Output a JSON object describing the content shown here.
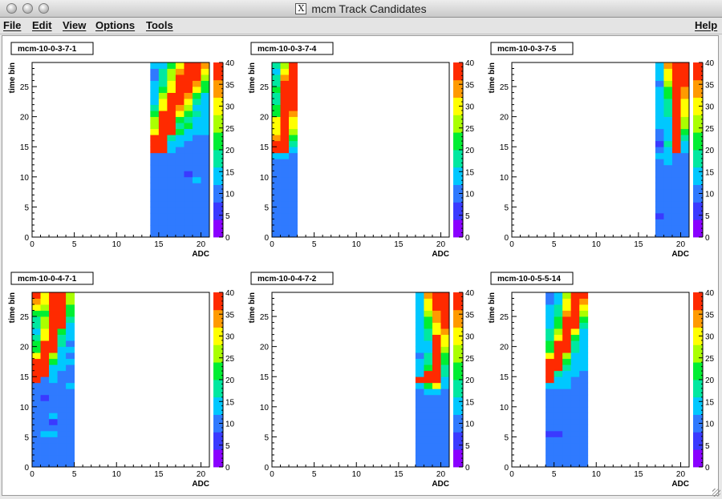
{
  "window": {
    "title": "mcm Track Candidates",
    "title_icon": "x11-icon"
  },
  "menubar": {
    "file": "File",
    "edit": "Edit",
    "view": "View",
    "options": "Options",
    "tools": "Tools",
    "help": "Help"
  },
  "colors": {
    "palette": [
      "#8a00ff",
      "#3a3aff",
      "#2f7aff",
      "#00c8ff",
      "#00e8a0",
      "#00ee33",
      "#aaff00",
      "#ffff00",
      "#ff9a00",
      "#ff2a00"
    ],
    "text": "#000000",
    "frame_bg": "#ffffff"
  },
  "chart_data": [
    {
      "type": "heatmap",
      "title": "mcm-10-0-3-7-1",
      "xlabel": "ADC",
      "ylabel": "time bin",
      "xlim": [
        0,
        21
      ],
      "ylim": [
        0,
        29
      ],
      "xticks": [
        0,
        5,
        10,
        15,
        20
      ],
      "yticks": [
        0,
        5,
        10,
        15,
        20,
        25
      ],
      "zlim": [
        0,
        40
      ],
      "zticks": [
        0,
        5,
        10,
        15,
        20,
        25,
        30,
        35,
        40
      ],
      "x_range": [
        14,
        21
      ],
      "values": [
        [
          8,
          9,
          9,
          10,
          8,
          9,
          8
        ],
        [
          8,
          10,
          10,
          9,
          9,
          8,
          9
        ],
        [
          9,
          8,
          10,
          9,
          10,
          8,
          9
        ],
        [
          10,
          9,
          8,
          9,
          10,
          8,
          9
        ],
        [
          9,
          10,
          9,
          8,
          9,
          10,
          9
        ],
        [
          8,
          9,
          10,
          9,
          8,
          9,
          10
        ],
        [
          10,
          9,
          8,
          10,
          9,
          9,
          8
        ],
        [
          9,
          8,
          10,
          9,
          8,
          10,
          9
        ],
        [
          11,
          10,
          9,
          8,
          9,
          10,
          9
        ],
        [
          10,
          11,
          9,
          8,
          10,
          12,
          9
        ],
        [
          9,
          10,
          11,
          9,
          6,
          9,
          9
        ],
        [
          10,
          9,
          10,
          11,
          9,
          10,
          9
        ],
        [
          9,
          8,
          11,
          9,
          10,
          9,
          11
        ],
        [
          10,
          11,
          9,
          10,
          9,
          11,
          10
        ],
        [
          38,
          38,
          12,
          10,
          11,
          10,
          10
        ],
        [
          40,
          40,
          14,
          13,
          10,
          10,
          11
        ],
        [
          38,
          40,
          16,
          15,
          12,
          11,
          10
        ],
        [
          30,
          39,
          38,
          20,
          14,
          13,
          12
        ],
        [
          25,
          40,
          40,
          18,
          20,
          14,
          12
        ],
        [
          24,
          39,
          40,
          22,
          17,
          15,
          12
        ],
        [
          20,
          37,
          40,
          28,
          22,
          16,
          13
        ],
        [
          18,
          30,
          40,
          35,
          26,
          15,
          12
        ],
        [
          15,
          28,
          39,
          38,
          28,
          18,
          13
        ],
        [
          12,
          26,
          37,
          40,
          35,
          22,
          15
        ],
        [
          13,
          20,
          30,
          40,
          38,
          30,
          20
        ],
        [
          12,
          18,
          28,
          40,
          40,
          33,
          22
        ],
        [
          11,
          17,
          27,
          38,
          40,
          38,
          26
        ],
        [
          10,
          16,
          26,
          35,
          40,
          40,
          28
        ],
        [
          12,
          14,
          20,
          28,
          38,
          40,
          33
        ]
      ]
    },
    {
      "type": "heatmap",
      "title": "mcm-10-0-3-7-4",
      "xlabel": "ADC",
      "ylabel": "time bin",
      "xlim": [
        0,
        21
      ],
      "ylim": [
        0,
        29
      ],
      "xticks": [
        0,
        5,
        10,
        15,
        20
      ],
      "yticks": [
        0,
        5,
        10,
        15,
        20,
        25
      ],
      "zlim": [
        0,
        40
      ],
      "zticks": [
        0,
        5,
        10,
        15,
        20,
        25,
        30,
        35,
        40
      ],
      "x_range": [
        0,
        3
      ],
      "values": [
        [
          9,
          10,
          11
        ],
        [
          10,
          9,
          11
        ],
        [
          9,
          10,
          11
        ],
        [
          10,
          11,
          11
        ],
        [
          11,
          10,
          11
        ],
        [
          9,
          10,
          11
        ],
        [
          10,
          9,
          11
        ],
        [
          9,
          11,
          11
        ],
        [
          10,
          10,
          11
        ],
        [
          11,
          9,
          11
        ],
        [
          10,
          11,
          11
        ],
        [
          9,
          10,
          11
        ],
        [
          10,
          11,
          11
        ],
        [
          12,
          13,
          11
        ],
        [
          40,
          40,
          14
        ],
        [
          40,
          40,
          18
        ],
        [
          32,
          40,
          22
        ],
        [
          30,
          40,
          27
        ],
        [
          30,
          40,
          28
        ],
        [
          28,
          40,
          30
        ],
        [
          22,
          40,
          32
        ],
        [
          20,
          40,
          36
        ],
        [
          18,
          40,
          38
        ],
        [
          17,
          40,
          40
        ],
        [
          20,
          40,
          40
        ],
        [
          16,
          38,
          40
        ],
        [
          19,
          32,
          40
        ],
        [
          15,
          28,
          40
        ],
        [
          18,
          26,
          40
        ]
      ]
    },
    {
      "type": "heatmap",
      "title": "mcm-10-0-3-7-5",
      "xlabel": "ADC",
      "ylabel": "time bin",
      "xlim": [
        0,
        21
      ],
      "ylim": [
        0,
        29
      ],
      "xticks": [
        0,
        5,
        10,
        15,
        20
      ],
      "yticks": [
        0,
        5,
        10,
        15,
        20,
        25
      ],
      "zlim": [
        0,
        40
      ],
      "zticks": [
        0,
        5,
        10,
        15,
        20,
        25,
        30,
        35,
        40
      ],
      "x_range": [
        17,
        21
      ],
      "values": [
        [
          9,
          10,
          9,
          10
        ],
        [
          10,
          9,
          10,
          9
        ],
        [
          9,
          10,
          10,
          9
        ],
        [
          6,
          9,
          10,
          10
        ],
        [
          10,
          9,
          9,
          10
        ],
        [
          9,
          10,
          9,
          9
        ],
        [
          10,
          9,
          10,
          10
        ],
        [
          9,
          10,
          9,
          11
        ],
        [
          10,
          9,
          10,
          9
        ],
        [
          9,
          11,
          10,
          10
        ],
        [
          10,
          9,
          10,
          11
        ],
        [
          9,
          11,
          10,
          9
        ],
        [
          11,
          12,
          11,
          10
        ],
        [
          13,
          14,
          11,
          11
        ],
        [
          10,
          14,
          40,
          12
        ],
        [
          6,
          16,
          40,
          14
        ],
        [
          8,
          15,
          40,
          18
        ],
        [
          11,
          15,
          38,
          20
        ],
        [
          12,
          14,
          40,
          24
        ],
        [
          12,
          14,
          40,
          24
        ],
        [
          13,
          16,
          40,
          28
        ],
        [
          12,
          16,
          40,
          30
        ],
        [
          14,
          18,
          40,
          30
        ],
        [
          13,
          20,
          40,
          34
        ],
        [
          12,
          22,
          40,
          35
        ],
        [
          11,
          24,
          40,
          38
        ],
        [
          12,
          28,
          38,
          40
        ],
        [
          13,
          30,
          40,
          40
        ],
        [
          14,
          32,
          40,
          40
        ]
      ]
    },
    {
      "type": "heatmap",
      "title": "mcm-10-0-4-7-1",
      "xlabel": "ADC",
      "ylabel": "time bin",
      "xlim": [
        0,
        21
      ],
      "ylim": [
        0,
        29
      ],
      "xticks": [
        0,
        5,
        10,
        15,
        20
      ],
      "yticks": [
        0,
        5,
        10,
        15,
        20,
        25
      ],
      "zlim": [
        0,
        40
      ],
      "zticks": [
        0,
        5,
        10,
        15,
        20,
        25,
        30,
        35,
        40
      ],
      "x_range": [
        0,
        5
      ],
      "values": [
        [
          10,
          9,
          10,
          11,
          9
        ],
        [
          9,
          10,
          9,
          11,
          10
        ],
        [
          10,
          9,
          11,
          10,
          11
        ],
        [
          9,
          11,
          10,
          9,
          10
        ],
        [
          8,
          10,
          9,
          11,
          10
        ],
        [
          11,
          13,
          12,
          11,
          10
        ],
        [
          9,
          10,
          11,
          10,
          11
        ],
        [
          10,
          9,
          7,
          11,
          9
        ],
        [
          11,
          10,
          12,
          9,
          10
        ],
        [
          10,
          9,
          11,
          10,
          11
        ],
        [
          9,
          10,
          8,
          11,
          10
        ],
        [
          11,
          7,
          9,
          10,
          11
        ],
        [
          9,
          10,
          11,
          9,
          11
        ],
        [
          10,
          10,
          11,
          11,
          12
        ],
        [
          38,
          11,
          12,
          10,
          11
        ],
        [
          40,
          40,
          12,
          11,
          10
        ],
        [
          40,
          40,
          14,
          12,
          11
        ],
        [
          38,
          40,
          20,
          14,
          12
        ],
        [
          30,
          40,
          26,
          14,
          11
        ],
        [
          20,
          40,
          38,
          15,
          12
        ],
        [
          23,
          40,
          40,
          16,
          11
        ],
        [
          18,
          30,
          40,
          18,
          12
        ],
        [
          14,
          28,
          40,
          22,
          13
        ],
        [
          17,
          26,
          40,
          40,
          15
        ],
        [
          16,
          24,
          40,
          40,
          18
        ],
        [
          20,
          22,
          38,
          40,
          20
        ],
        [
          30,
          26,
          36,
          40,
          22
        ],
        [
          32,
          28,
          40,
          40,
          24
        ],
        [
          36,
          30,
          40,
          40,
          26
        ]
      ]
    },
    {
      "type": "heatmap",
      "title": "mcm-10-0-4-7-2",
      "xlabel": "ADC",
      "ylabel": "time bin",
      "xlim": [
        0,
        21
      ],
      "ylim": [
        0,
        29
      ],
      "xticks": [
        0,
        5,
        10,
        15,
        20
      ],
      "yticks": [
        0,
        5,
        10,
        15,
        20,
        25
      ],
      "zlim": [
        0,
        40
      ],
      "zticks": [
        0,
        5,
        10,
        15,
        20,
        25,
        30,
        35,
        40
      ],
      "x_range": [
        17,
        21
      ],
      "values": [
        [
          9,
          10,
          9,
          10
        ],
        [
          10,
          9,
          10,
          9
        ],
        [
          9,
          10,
          9,
          10
        ],
        [
          10,
          9,
          10,
          9
        ],
        [
          9,
          10,
          11,
          9
        ],
        [
          10,
          9,
          10,
          11
        ],
        [
          9,
          10,
          9,
          10
        ],
        [
          10,
          9,
          11,
          9
        ],
        [
          9,
          10,
          10,
          11
        ],
        [
          10,
          9,
          11,
          10
        ],
        [
          9,
          11,
          10,
          9
        ],
        [
          10,
          9,
          11,
          10
        ],
        [
          11,
          12,
          13,
          10
        ],
        [
          12,
          22,
          28,
          12
        ],
        [
          40,
          40,
          40,
          14
        ],
        [
          12,
          36,
          40,
          16
        ],
        [
          13,
          20,
          40,
          18
        ],
        [
          12,
          18,
          40,
          20
        ],
        [
          11,
          16,
          40,
          22
        ],
        [
          12,
          15,
          38,
          26
        ],
        [
          13,
          14,
          36,
          28
        ],
        [
          12,
          16,
          40,
          30
        ],
        [
          14,
          18,
          28,
          35
        ],
        [
          15,
          20,
          30,
          38
        ],
        [
          13,
          22,
          32,
          40
        ],
        [
          12,
          26,
          34,
          40
        ],
        [
          14,
          28,
          36,
          40
        ],
        [
          13,
          30,
          38,
          40
        ],
        [
          12,
          32,
          40,
          40
        ]
      ]
    },
    {
      "type": "heatmap",
      "title": "mcm-10-0-5-5-14",
      "xlabel": "ADC",
      "ylabel": "time bin",
      "xlim": [
        0,
        21
      ],
      "ylim": [
        0,
        29
      ],
      "xticks": [
        0,
        5,
        10,
        15,
        20
      ],
      "yticks": [
        0,
        5,
        10,
        15,
        20,
        25
      ],
      "zlim": [
        0,
        40
      ],
      "zticks": [
        0,
        5,
        10,
        15,
        20,
        25,
        30,
        35,
        40
      ],
      "x_range": [
        4,
        9
      ],
      "values": [
        [
          10,
          9,
          10,
          11,
          9
        ],
        [
          9,
          10,
          9,
          10,
          11
        ],
        [
          10,
          9,
          11,
          9,
          10
        ],
        [
          9,
          10,
          10,
          11,
          9
        ],
        [
          10,
          9,
          11,
          10,
          11
        ],
        [
          6,
          7,
          9,
          10,
          9
        ],
        [
          10,
          9,
          10,
          11,
          10
        ],
        [
          9,
          10,
          9,
          10,
          11
        ],
        [
          10,
          11,
          10,
          9,
          10
        ],
        [
          9,
          10,
          11,
          10,
          9
        ],
        [
          10,
          9,
          10,
          11,
          10
        ],
        [
          9,
          10,
          9,
          10,
          11
        ],
        [
          10,
          11,
          10,
          9,
          10
        ],
        [
          12,
          13,
          12,
          11,
          10
        ],
        [
          40,
          12,
          13,
          11,
          10
        ],
        [
          40,
          16,
          14,
          12,
          11
        ],
        [
          40,
          38,
          16,
          13,
          12
        ],
        [
          38,
          40,
          20,
          14,
          12
        ],
        [
          30,
          40,
          26,
          14,
          13
        ],
        [
          22,
          40,
          36,
          16,
          12
        ],
        [
          20,
          40,
          40,
          18,
          13
        ],
        [
          18,
          30,
          40,
          22,
          14
        ],
        [
          16,
          26,
          40,
          30,
          15
        ],
        [
          14,
          22,
          40,
          40,
          18
        ],
        [
          13,
          20,
          38,
          40,
          22
        ],
        [
          12,
          18,
          34,
          40,
          26
        ],
        [
          12,
          16,
          30,
          40,
          30
        ],
        [
          11,
          14,
          28,
          40,
          34
        ],
        [
          10,
          12,
          26,
          40,
          38
        ]
      ]
    }
  ]
}
